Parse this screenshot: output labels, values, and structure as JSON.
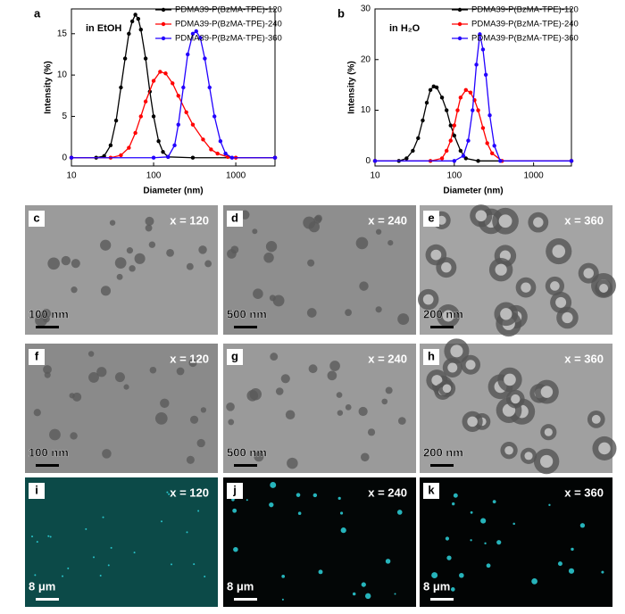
{
  "chart_data": [
    {
      "type": "line",
      "panel": "a",
      "annotation": "in EtOH",
      "x_label": "Diameter (nm)",
      "y_label": "Intensity (%)",
      "log_x": true,
      "xlim": [
        10,
        3000
      ],
      "xticks": [
        10,
        100,
        1000
      ],
      "ylim": [
        -1,
        18
      ],
      "yticks": [
        0,
        5,
        10,
        15
      ],
      "legend": "top-right",
      "series": [
        {
          "name": "PDMA39-P(BzMA-TPE)-120",
          "color": "#000000",
          "x": [
            10,
            20,
            25,
            30,
            35,
            40,
            45,
            50,
            55,
            60,
            65,
            70,
            80,
            90,
            100,
            115,
            130,
            150,
            300,
            3000
          ],
          "values": [
            0,
            0,
            0.2,
            1.5,
            4.5,
            8.5,
            12,
            15,
            16.5,
            17.3,
            16.8,
            15.5,
            12,
            8,
            5,
            2,
            0.7,
            0.1,
            0,
            0
          ]
        },
        {
          "name": "PDMA39-P(BzMA-TPE)-240",
          "color": "#ff0000",
          "x": [
            10,
            30,
            40,
            50,
            60,
            70,
            80,
            100,
            120,
            140,
            170,
            200,
            250,
            300,
            400,
            500,
            600,
            800,
            1000,
            3000
          ],
          "values": [
            0,
            0,
            0.3,
            1.2,
            3,
            5,
            6.8,
            9.3,
            10.4,
            10.2,
            9,
            7.5,
            5.5,
            4,
            2.2,
            1,
            0.5,
            0.1,
            0,
            0
          ]
        },
        {
          "name": "PDMA39-P(BzMA-TPE)-360",
          "color": "#2200ff",
          "x": [
            10,
            100,
            150,
            180,
            200,
            230,
            260,
            300,
            330,
            370,
            420,
            480,
            550,
            650,
            750,
            900,
            3000
          ],
          "values": [
            0,
            0,
            0.1,
            1.5,
            4,
            8.5,
            12.5,
            15,
            15.3,
            14.5,
            12,
            8.5,
            5,
            2,
            0.5,
            0,
            0
          ]
        }
      ]
    },
    {
      "type": "line",
      "panel": "b",
      "annotation": "in H₂O",
      "x_label": "Diameter (nm)",
      "y_label": "Intensity (%)",
      "log_x": true,
      "xlim": [
        10,
        3000
      ],
      "xticks": [
        10,
        100,
        1000
      ],
      "ylim": [
        -1,
        30
      ],
      "yticks": [
        0,
        10,
        20,
        30
      ],
      "legend": "top-right",
      "series": [
        {
          "name": "PDMA39-P(BzMA-TPE)-120",
          "color": "#000000",
          "x": [
            10,
            20,
            25,
            30,
            35,
            40,
            45,
            50,
            55,
            60,
            70,
            80,
            90,
            100,
            120,
            140,
            200,
            3000
          ],
          "values": [
            0,
            0,
            0.5,
            2,
            4.5,
            8,
            11.5,
            14,
            14.7,
            14.5,
            12.5,
            10,
            7,
            5,
            2,
            0.5,
            0,
            0
          ]
        },
        {
          "name": "PDMA39-P(BzMA-TPE)-240",
          "color": "#ff0000",
          "x": [
            10,
            50,
            70,
            80,
            90,
            100,
            110,
            120,
            140,
            160,
            180,
            200,
            230,
            260,
            300,
            400,
            3000
          ],
          "values": [
            0,
            0,
            0.5,
            2,
            4,
            7,
            10,
            12.5,
            14,
            13.5,
            12,
            10,
            6.5,
            3.5,
            1.5,
            0,
            0
          ]
        },
        {
          "name": "PDMA39-P(BzMA-TPE)-360",
          "color": "#2200ff",
          "x": [
            10,
            100,
            130,
            150,
            170,
            190,
            210,
            230,
            250,
            280,
            320,
            380,
            3000
          ],
          "values": [
            0,
            0,
            1,
            4,
            10,
            19,
            25,
            22,
            17,
            9,
            3,
            0,
            0
          ]
        }
      ]
    }
  ],
  "panels": [
    {
      "letter": "c",
      "label": "x = 120",
      "scale": "100 nm"
    },
    {
      "letter": "d",
      "label": "x = 240",
      "scale": "500 nm"
    },
    {
      "letter": "e",
      "label": "x = 360",
      "scale": "200 nm"
    },
    {
      "letter": "f",
      "label": "x = 120",
      "scale": "100 nm"
    },
    {
      "letter": "g",
      "label": "x = 240",
      "scale": "500 nm"
    },
    {
      "letter": "h",
      "label": "x = 360",
      "scale": "200 nm"
    },
    {
      "letter": "i",
      "label": "x = 120",
      "scale": "8 μm"
    },
    {
      "letter": "j",
      "label": "x = 240",
      "scale": "8 μm"
    },
    {
      "letter": "k",
      "label": "x = 360",
      "scale": "8 μm"
    }
  ]
}
